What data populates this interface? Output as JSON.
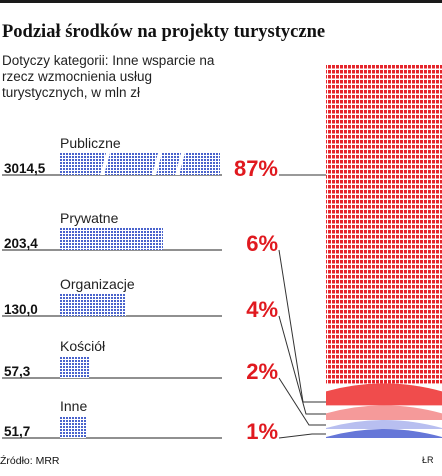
{
  "header": {
    "title": "Podział środków na projekty turystyczne",
    "subtitle": "Dotyczy kategorii: Inne wsparcie na rzecz wzmocnienia usług turystycznych, w mln zł"
  },
  "footer": {
    "source": "Źródło: MRR",
    "credit": "ŁR"
  },
  "chart_data": {
    "type": "bar",
    "title": "Podział środków na projekty turystyczne",
    "subtitle": "Dotyczy kategorii: Inne wsparcie na rzecz wzmocnienia usług turystycznych, w mln zł",
    "categories": [
      "Publiczne",
      "Prywatne",
      "Organizacje",
      "Kościół",
      "Inne"
    ],
    "values": [
      3014.5,
      203.4,
      130.0,
      57.3,
      51.7
    ],
    "value_labels": [
      "3014,5",
      "203,4",
      "130,0",
      "57,3",
      "51,7"
    ],
    "percent_labels": [
      "87%",
      "6%",
      "4%",
      "2%",
      "1%"
    ],
    "percent_values": [
      87,
      6,
      4,
      2,
      1
    ],
    "stack_colors": [
      "#e8252a",
      "#f04c4c",
      "#f59a9a",
      "#b8bff0",
      "#6677d8"
    ],
    "bar_color": "#3f57c8",
    "accent_color": "#e0191f",
    "grid": false,
    "legend": "none"
  }
}
